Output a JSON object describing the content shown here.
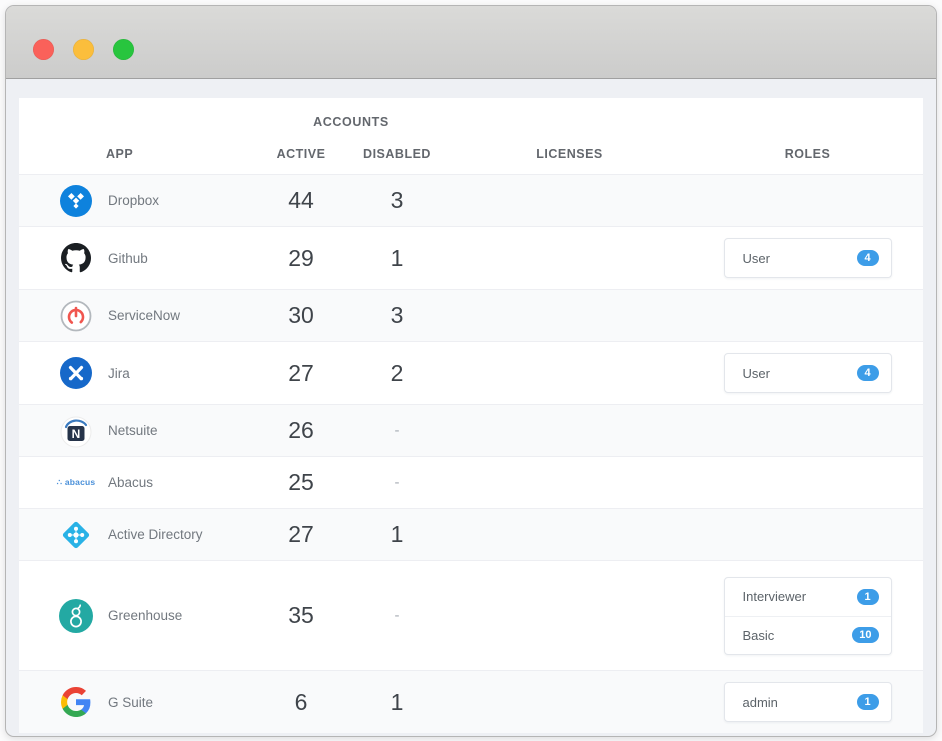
{
  "titlebar": {
    "buttons": [
      {
        "name": "close-button",
        "color": "#fa615a"
      },
      {
        "name": "minimize-button",
        "color": "#fbbe3c"
      },
      {
        "name": "zoom-button",
        "color": "#28c53e"
      }
    ]
  },
  "table": {
    "group_header": "ACCOUNTS",
    "columns": [
      "APP",
      "ACTIVE",
      "DISABLED",
      "LICENSES",
      "ROLES"
    ],
    "rows": [
      {
        "app": "Dropbox",
        "icon": "dropbox-icon",
        "active": "44",
        "disabled": "3",
        "licenses": "",
        "roles": []
      },
      {
        "app": "Github",
        "icon": "github-icon",
        "active": "29",
        "disabled": "1",
        "licenses": "",
        "roles": [
          {
            "name": "User",
            "count": "4"
          }
        ]
      },
      {
        "app": "ServiceNow",
        "icon": "servicenow-icon",
        "active": "30",
        "disabled": "3",
        "licenses": "",
        "roles": []
      },
      {
        "app": "Jira",
        "icon": "jira-icon",
        "active": "27",
        "disabled": "2",
        "licenses": "",
        "roles": [
          {
            "name": "User",
            "count": "4"
          }
        ]
      },
      {
        "app": "Netsuite",
        "icon": "netsuite-icon",
        "active": "26",
        "disabled": "-",
        "licenses": "",
        "roles": []
      },
      {
        "app": "Abacus",
        "icon": "abacus-icon",
        "active": "25",
        "disabled": "-",
        "licenses": "",
        "roles": []
      },
      {
        "app": "Active Directory",
        "icon": "active-directory-icon",
        "active": "27",
        "disabled": "1",
        "licenses": "",
        "roles": []
      },
      {
        "app": "Greenhouse",
        "icon": "greenhouse-icon",
        "active": "35",
        "disabled": "-",
        "licenses": "",
        "roles": [
          {
            "name": "Interviewer",
            "count": "1"
          },
          {
            "name": "Basic",
            "count": "10"
          }
        ]
      },
      {
        "app": "G Suite",
        "icon": "gsuite-icon",
        "active": "6",
        "disabled": "1",
        "licenses": "",
        "roles": [
          {
            "name": "admin",
            "count": "1"
          }
        ]
      }
    ]
  },
  "colors": {
    "badge_blue": "#3d9de8",
    "traffic_red": "#fa615a",
    "traffic_yellow": "#fbbe3c",
    "traffic_green": "#28c53e",
    "dropbox_blue": "#0e82dd",
    "jira_blue": "#1668c9",
    "active_directory_cyan": "#29b2e6",
    "greenhouse_teal": "#23a9a3",
    "servicenow_red": "#f0564f"
  }
}
